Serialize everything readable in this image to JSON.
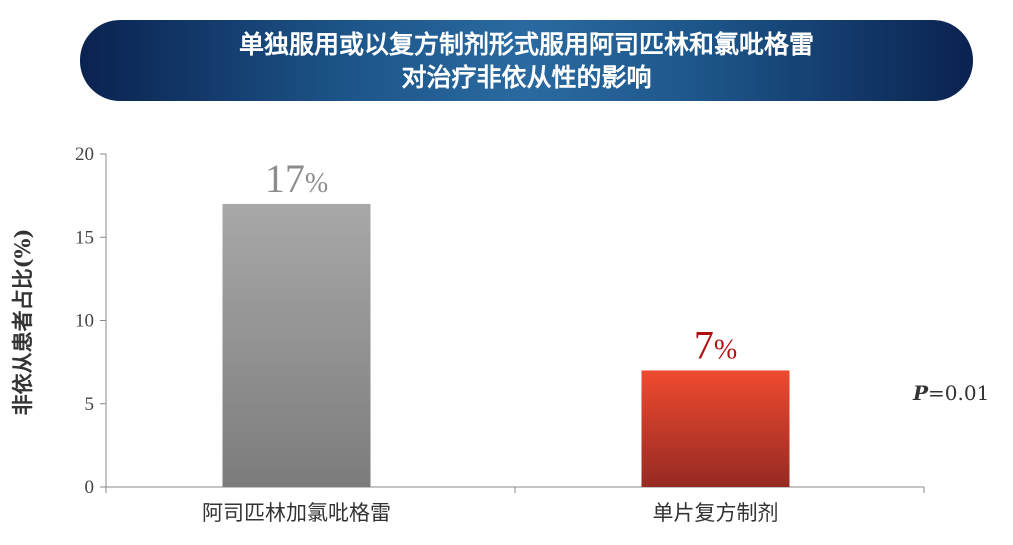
{
  "title": {
    "line1": "单独服用或以复方制剂形式服用阿司匹林和氯吡格雷",
    "line2": "对治疗非依从性的影响"
  },
  "annotation": {
    "p_label": "P",
    "p_value": "=0.01"
  },
  "colors": {
    "banner": "#1d5589",
    "bar_gray": "#8c8c8c",
    "bar_red": "#d6402c",
    "label_gray": "#8c8c8c",
    "label_red": "#b01010"
  },
  "chart_data": {
    "type": "bar",
    "ylabel": "非依从患者占比(%)",
    "xlabel": "",
    "ylim": [
      0,
      20
    ],
    "yticks": [
      0,
      5,
      10,
      15,
      20
    ],
    "grid": false,
    "categories": [
      "阿司匹林加氯吡格雷",
      "单片复方制剂"
    ],
    "values": [
      17,
      7
    ],
    "value_labels": [
      {
        "number": "17",
        "unit": "%"
      },
      {
        "number": "7",
        "unit": "%"
      }
    ]
  }
}
